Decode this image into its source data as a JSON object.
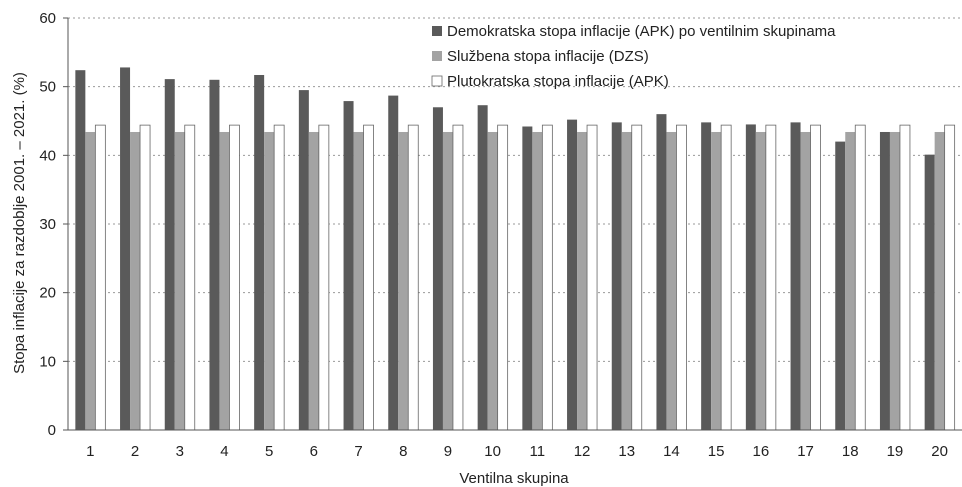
{
  "chart_data": {
    "type": "bar",
    "xlabel": "Ventilna skupina",
    "ylabel": "Stopa inflacije za razdoblje 2001. – 2021. (%)",
    "ylim": [
      0,
      60
    ],
    "yticks": [
      "0",
      "10",
      "20",
      "30",
      "40",
      "50",
      "60"
    ],
    "grid": true,
    "legend_position": "top-right",
    "categories": [
      "1",
      "2",
      "3",
      "4",
      "5",
      "6",
      "7",
      "8",
      "9",
      "10",
      "11",
      "12",
      "13",
      "14",
      "15",
      "16",
      "17",
      "18",
      "19",
      "20"
    ],
    "series": [
      {
        "name": "Demokratska stopa inflacije (APK) po ventilnim skupinama",
        "color": "#5a5a5a",
        "values": [
          52.4,
          52.8,
          51.1,
          51.0,
          51.7,
          49.5,
          47.9,
          48.7,
          47.0,
          47.3,
          44.2,
          45.2,
          44.8,
          46.0,
          44.8,
          44.5,
          44.8,
          42.0,
          43.4,
          40.1
        ]
      },
      {
        "name": "Službena stopa inflacije (DZS)",
        "color": "#a3a3a3",
        "values": [
          43.4,
          43.4,
          43.4,
          43.4,
          43.4,
          43.4,
          43.4,
          43.4,
          43.4,
          43.4,
          43.4,
          43.4,
          43.4,
          43.4,
          43.4,
          43.4,
          43.4,
          43.4,
          43.4,
          43.4
        ]
      },
      {
        "name": "Plutokratska stopa inflacije (APK)",
        "color": "#ffffff",
        "values": [
          44.4,
          44.4,
          44.4,
          44.4,
          44.4,
          44.4,
          44.4,
          44.4,
          44.4,
          44.4,
          44.4,
          44.4,
          44.4,
          44.4,
          44.4,
          44.4,
          44.4,
          44.4,
          44.4,
          44.4
        ]
      }
    ]
  }
}
